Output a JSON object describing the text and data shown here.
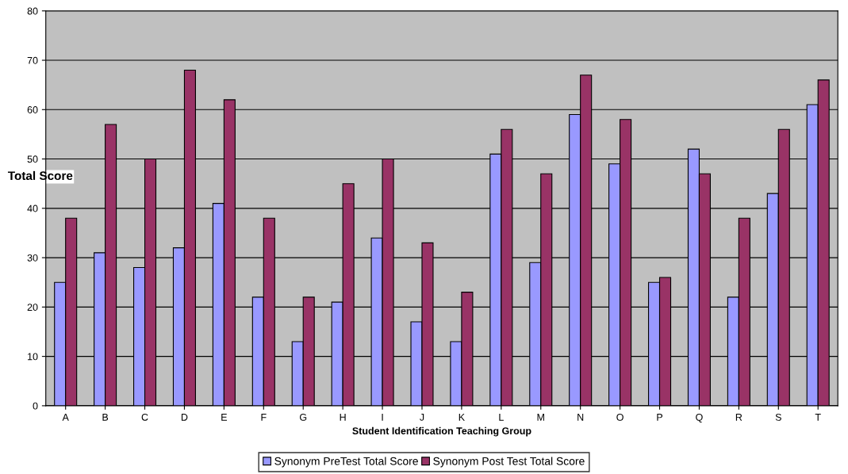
{
  "chart_data": {
    "type": "bar",
    "xlabel": "Student Identification Teaching Group",
    "ylabel": "Total Score",
    "categories": [
      "A",
      "B",
      "C",
      "D",
      "E",
      "F",
      "G",
      "H",
      "I",
      "J",
      "K",
      "L",
      "M",
      "N",
      "O",
      "P",
      "Q",
      "R",
      "S",
      "T"
    ],
    "series": [
      {
        "name": "Synonym PreTest Total Score",
        "color": "#9999ff",
        "values": [
          25,
          31,
          28,
          32,
          41,
          22,
          13,
          21,
          34,
          17,
          13,
          51,
          29,
          59,
          49,
          25,
          52,
          22,
          43,
          61
        ]
      },
      {
        "name": "Synonym Post Test Total Score",
        "color": "#993366",
        "values": [
          38,
          57,
          50,
          68,
          62,
          38,
          22,
          45,
          50,
          33,
          23,
          56,
          47,
          67,
          58,
          26,
          47,
          38,
          56,
          66
        ]
      }
    ],
    "ylim": [
      0,
      80
    ],
    "yticks": [
      0,
      10,
      20,
      30,
      40,
      50,
      60,
      70,
      80
    ],
    "grid": "y",
    "legend": "bottom"
  }
}
